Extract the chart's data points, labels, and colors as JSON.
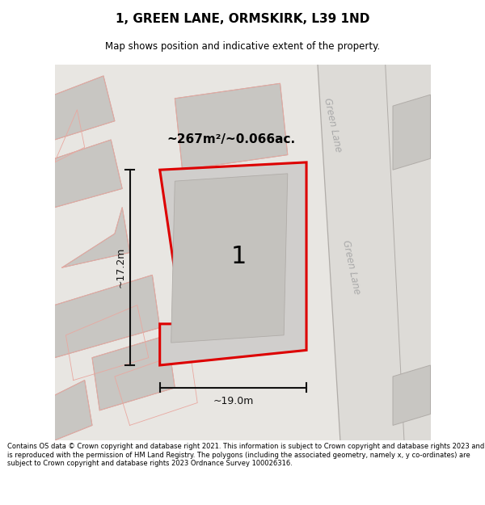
{
  "title_line1": "1, GREEN LANE, ORMSKIRK, L39 1ND",
  "title_line2": "Map shows position and indicative extent of the property.",
  "footer_text": "Contains OS data © Crown copyright and database right 2021. This information is subject to Crown copyright and database rights 2023 and is reproduced with the permission of HM Land Registry. The polygons (including the associated geometry, namely x, y co-ordinates) are subject to Crown copyright and database rights 2023 Ordnance Survey 100026316.",
  "area_label": "~267m²/~0.066ac.",
  "width_label": "~19.0m",
  "height_label": "~17.2m",
  "plot_number": "1",
  "bg_color": "#e8e6e2",
  "plot_fill": "#d0cecc",
  "plot_edge": "#dd0000",
  "road_label1": "Green Lane",
  "road_label2": "Green Lane",
  "building_fill": "#c8c6c2",
  "building_edge_gray": "#b0aca8",
  "pink_outline": "#e8a8a0",
  "dim_color": "#111111"
}
